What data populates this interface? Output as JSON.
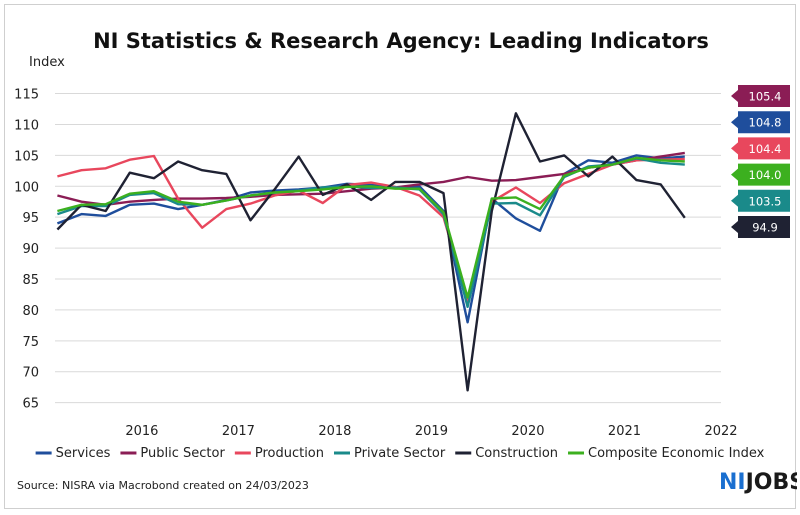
{
  "chart_data": {
    "type": "line",
    "title": "NI Statistics & Research Agency: Leading Indicators",
    "ylabel": "Index",
    "xlabel": "",
    "ylim": [
      63,
      118
    ],
    "yticks": [
      65,
      70,
      75,
      80,
      85,
      90,
      95,
      100,
      105,
      110,
      115
    ],
    "xlim": [
      2015.6,
      2022.5
    ],
    "xticks": [
      "2016",
      "2017",
      "2018",
      "2019",
      "2020",
      "2021",
      "2022"
    ],
    "grid": true,
    "legend_position": "bottom",
    "x": [
      2015.625,
      2015.875,
      2016.125,
      2016.375,
      2016.625,
      2016.875,
      2017.125,
      2017.375,
      2017.625,
      2017.875,
      2018.125,
      2018.375,
      2018.625,
      2018.875,
      2019.125,
      2019.375,
      2019.625,
      2019.875,
      2020.125,
      2020.375,
      2020.625,
      2020.875,
      2021.125,
      2021.375,
      2021.625,
      2021.875,
      2022.125
    ],
    "series": [
      {
        "name": "Services",
        "color": "#1f4e9c",
        "end_label": "104.8",
        "values": [
          94.0,
          95.5,
          95.2,
          97.0,
          97.2,
          96.3,
          97.0,
          97.8,
          99.0,
          99.3,
          99.5,
          99.8,
          100.4,
          100.2,
          99.8,
          100.0,
          96.0,
          78.0,
          98.0,
          94.8,
          92.8,
          102.0,
          104.2,
          103.8,
          105.0,
          104.5,
          104.8
        ]
      },
      {
        "name": "Public Sector",
        "color": "#8b1d55",
        "end_label": "105.4",
        "values": [
          98.5,
          97.5,
          97.0,
          97.5,
          97.8,
          98.0,
          98.0,
          98.1,
          98.3,
          98.6,
          98.7,
          98.8,
          99.2,
          99.6,
          99.8,
          100.3,
          100.7,
          101.5,
          100.9,
          101.0,
          101.5,
          102.0,
          103.0,
          103.5,
          104.2,
          104.8,
          105.4
        ]
      },
      {
        "name": "Production",
        "color": "#e8475d",
        "end_label": "104.4",
        "values": [
          101.6,
          102.6,
          102.9,
          104.3,
          104.9,
          98.0,
          93.3,
          96.3,
          97.2,
          98.5,
          99.3,
          97.3,
          100.2,
          100.6,
          99.9,
          98.5,
          95.0,
          81.5,
          97.5,
          99.8,
          97.3,
          100.5,
          102.0,
          103.5,
          104.2,
          104.3,
          104.4
        ]
      },
      {
        "name": "Private Sector",
        "color": "#1a8a8a",
        "end_label": "103.5",
        "values": [
          95.5,
          96.8,
          96.8,
          98.6,
          98.9,
          97.1,
          97.0,
          97.7,
          98.5,
          99.0,
          99.3,
          99.8,
          100.0,
          99.7,
          99.8,
          99.5,
          95.5,
          80.5,
          97.2,
          97.3,
          95.3,
          101.5,
          103.2,
          103.5,
          104.5,
          103.8,
          103.5
        ]
      },
      {
        "name": "Construction",
        "color": "#1f2233",
        "end_label": "94.9",
        "values": [
          93.0,
          97.0,
          96.0,
          102.2,
          101.3,
          104.0,
          102.6,
          102.0,
          94.5,
          99.5,
          104.8,
          98.6,
          100.3,
          97.8,
          100.7,
          100.7,
          98.9,
          67.0,
          96.0,
          111.8,
          104.0,
          105.0,
          101.6,
          104.8,
          101.0,
          100.3,
          94.9
        ]
      },
      {
        "name": "Composite Economic Index",
        "color": "#3cb01f",
        "end_label": "104.0",
        "values": [
          96.0,
          97.0,
          97.1,
          98.8,
          99.2,
          97.5,
          97.0,
          97.7,
          98.5,
          99.0,
          99.2,
          99.5,
          99.9,
          100.0,
          99.6,
          99.6,
          95.8,
          82.0,
          98.0,
          98.2,
          96.3,
          101.7,
          103.0,
          103.5,
          104.6,
          104.2,
          104.0
        ]
      }
    ],
    "end_tags_order": [
      "Public Sector",
      "Services",
      "Production",
      "Composite Economic Index",
      "Private Sector",
      "Construction"
    ],
    "end_tag_colors": {
      "Public Sector": "#8b1d55",
      "Services": "#1f4e9c",
      "Production": "#e8475d",
      "Composite Economic Index": "#3cb01f",
      "Private Sector": "#1a8a8a",
      "Construction": "#1f2233"
    }
  },
  "footer": {
    "source": "Source: NISRA via Macrobond created on 24/03/2023"
  },
  "logo": {
    "text": "NIJOBS"
  }
}
